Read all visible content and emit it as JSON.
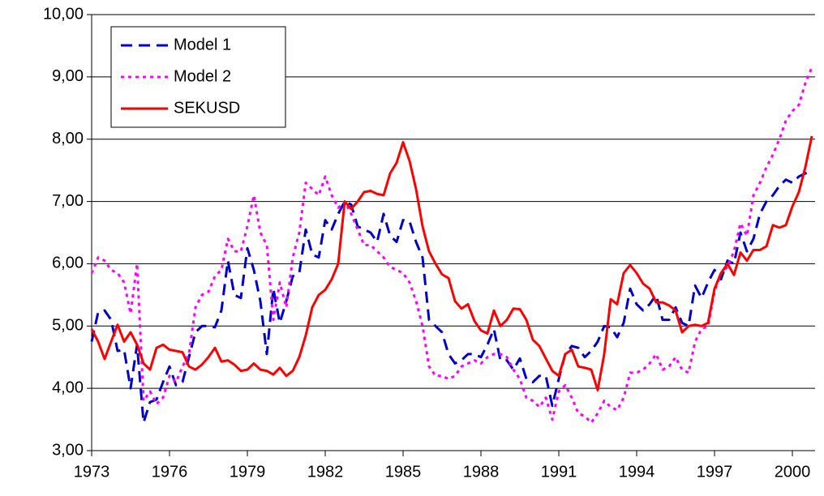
{
  "chart_data": {
    "type": "line",
    "x": [
      1973,
      1973.25,
      1973.5,
      1973.75,
      1974,
      1974.25,
      1974.5,
      1974.75,
      1975,
      1975.25,
      1975.5,
      1975.75,
      1976,
      1976.25,
      1976.5,
      1976.75,
      1977,
      1977.25,
      1977.5,
      1977.75,
      1978,
      1978.25,
      1978.5,
      1978.75,
      1979,
      1979.25,
      1979.5,
      1979.75,
      1980,
      1980.25,
      1980.5,
      1980.75,
      1981,
      1981.25,
      1981.5,
      1981.75,
      1982,
      1982.25,
      1982.5,
      1982.75,
      1983,
      1983.25,
      1983.5,
      1983.75,
      1984,
      1984.25,
      1984.5,
      1984.75,
      1985,
      1985.25,
      1985.5,
      1985.75,
      1986,
      1986.25,
      1986.5,
      1986.75,
      1987,
      1987.25,
      1987.5,
      1987.75,
      1988,
      1988.25,
      1988.5,
      1988.75,
      1989,
      1989.25,
      1989.5,
      1989.75,
      1990,
      1990.25,
      1990.5,
      1990.75,
      1991,
      1991.25,
      1991.5,
      1991.75,
      1992,
      1992.25,
      1992.5,
      1992.75,
      1993,
      1993.25,
      1993.5,
      1993.75,
      1994,
      1994.25,
      1994.5,
      1994.75,
      1995,
      1995.25,
      1995.5,
      1995.75,
      1996,
      1996.25,
      1996.5,
      1996.75,
      1997,
      1997.25,
      1997.5,
      1997.75,
      1998,
      1998.25,
      1998.5,
      1998.75,
      1999,
      1999.25,
      1999.5,
      1999.75,
      2000,
      2000.25,
      2000.5,
      2000.75
    ],
    "series": [
      {
        "name": "Model 1",
        "color": "#0000cc",
        "style": "dashed",
        "values": [
          4.75,
          5.22,
          5.25,
          5.1,
          4.6,
          4.62,
          4.0,
          4.7,
          3.45,
          3.78,
          3.82,
          4.1,
          4.35,
          4.05,
          4.1,
          4.5,
          4.9,
          5.0,
          5.0,
          4.98,
          5.25,
          6.05,
          5.5,
          5.45,
          6.25,
          5.9,
          5.4,
          4.55,
          5.6,
          5.05,
          5.4,
          5.8,
          5.85,
          6.55,
          6.15,
          6.1,
          6.7,
          6.55,
          6.8,
          7.0,
          6.95,
          6.6,
          6.55,
          6.5,
          6.35,
          6.8,
          6.45,
          6.35,
          6.7,
          6.68,
          6.35,
          6.1,
          5.1,
          5.0,
          4.9,
          4.55,
          4.4,
          4.45,
          4.55,
          4.55,
          4.5,
          4.7,
          4.95,
          4.45,
          4.45,
          4.3,
          4.48,
          4.15,
          4.1,
          4.2,
          4.2,
          3.72,
          4.15,
          4.55,
          4.68,
          4.65,
          4.5,
          4.6,
          4.75,
          5.0,
          4.98,
          4.82,
          5.05,
          5.6,
          5.35,
          5.25,
          5.35,
          5.5,
          5.1,
          5.1,
          5.3,
          5.05,
          5.0,
          5.65,
          5.45,
          5.7,
          5.9,
          5.75,
          6.05,
          6.0,
          6.5,
          6.2,
          6.4,
          6.8,
          7.0,
          7.1,
          7.25,
          7.35,
          7.3,
          7.4,
          7.45,
          7.5
        ]
      },
      {
        "name": "Model 2",
        "color": "#ff00ff",
        "style": "dotted",
        "values": [
          5.85,
          6.1,
          6.05,
          5.9,
          5.85,
          5.7,
          5.2,
          6.0,
          3.8,
          3.95,
          3.75,
          3.85,
          4.2,
          4.1,
          4.35,
          4.55,
          5.3,
          5.5,
          5.55,
          5.8,
          5.9,
          6.4,
          6.2,
          6.2,
          6.6,
          7.1,
          6.5,
          6.3,
          5.1,
          5.7,
          5.3,
          6.1,
          6.5,
          7.3,
          7.2,
          7.1,
          7.4,
          7.1,
          6.9,
          7.0,
          6.8,
          6.55,
          6.3,
          6.3,
          6.2,
          6.1,
          5.95,
          5.9,
          5.85,
          5.7,
          5.4,
          5.0,
          4.35,
          4.2,
          4.2,
          4.15,
          4.2,
          4.35,
          4.4,
          4.45,
          4.4,
          4.5,
          4.55,
          4.55,
          4.5,
          4.3,
          4.15,
          3.85,
          3.8,
          3.7,
          3.85,
          3.5,
          3.95,
          4.05,
          3.85,
          3.6,
          3.55,
          3.45,
          3.6,
          3.8,
          3.7,
          3.65,
          3.85,
          4.25,
          4.25,
          4.3,
          4.4,
          4.55,
          4.3,
          4.35,
          4.5,
          4.3,
          4.25,
          4.75,
          4.95,
          5.0,
          5.55,
          5.85,
          5.95,
          6.2,
          6.65,
          6.45,
          7.1,
          7.3,
          7.55,
          7.75,
          8.0,
          8.3,
          8.45,
          8.55,
          8.9,
          9.15
        ]
      },
      {
        "name": "SEKUSD",
        "color": "#ff0000",
        "style": "solid",
        "values": [
          4.95,
          4.75,
          4.47,
          4.75,
          5.02,
          4.75,
          4.9,
          4.7,
          4.4,
          4.3,
          4.65,
          4.7,
          4.62,
          4.6,
          4.58,
          4.35,
          4.3,
          4.38,
          4.5,
          4.65,
          4.43,
          4.45,
          4.38,
          4.28,
          4.3,
          4.4,
          4.3,
          4.28,
          4.22,
          4.33,
          4.2,
          4.28,
          4.5,
          4.85,
          5.3,
          5.5,
          5.58,
          5.75,
          6.0,
          7.0,
          6.88,
          7.0,
          7.15,
          7.17,
          7.12,
          7.1,
          7.45,
          7.62,
          7.95,
          7.65,
          7.2,
          6.6,
          6.2,
          6.0,
          5.83,
          5.77,
          5.4,
          5.28,
          5.35,
          5.08,
          4.93,
          4.88,
          5.25,
          5.0,
          5.1,
          5.28,
          5.27,
          5.1,
          4.78,
          4.68,
          4.48,
          4.28,
          4.2,
          4.55,
          4.62,
          4.35,
          4.33,
          4.3,
          3.97,
          4.55,
          5.43,
          5.35,
          5.85,
          5.98,
          5.85,
          5.68,
          5.6,
          5.38,
          5.38,
          5.33,
          5.25,
          4.9,
          5.0,
          5.02,
          5.0,
          5.05,
          5.6,
          5.85,
          6.0,
          5.82,
          6.18,
          6.05,
          6.22,
          6.22,
          6.28,
          6.62,
          6.58,
          6.62,
          6.92,
          7.15,
          7.55,
          8.05
        ]
      }
    ],
    "xlim": [
      1973,
      2000.875
    ],
    "xticks": [
      1973,
      1976,
      1979,
      1982,
      1985,
      1988,
      1991,
      1994,
      1997,
      2000
    ],
    "ylim": [
      3,
      10
    ],
    "yticks": [
      {
        "value": 3,
        "label": "3,00"
      },
      {
        "value": 4,
        "label": "4,00"
      },
      {
        "value": 5,
        "label": "5,00"
      },
      {
        "value": 6,
        "label": "6,00"
      },
      {
        "value": 7,
        "label": "7,00"
      },
      {
        "value": 8,
        "label": "8,00"
      },
      {
        "value": 9,
        "label": "9,00"
      },
      {
        "value": 10,
        "label": "10,00"
      }
    ],
    "grid": true,
    "legend": "upper left"
  }
}
